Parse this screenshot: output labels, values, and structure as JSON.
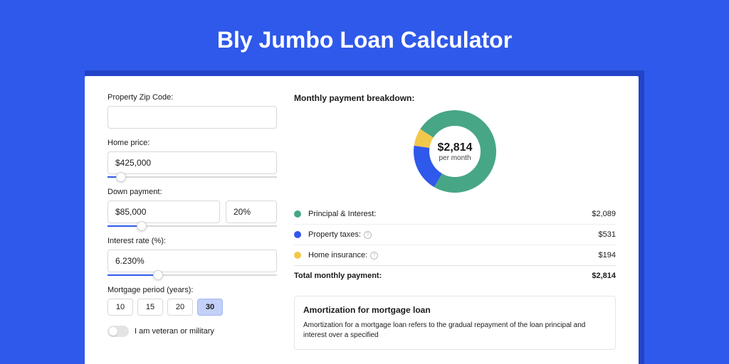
{
  "page": {
    "title": "Bly Jumbo Loan Calculator",
    "background_color": "#2f59ea",
    "card_shadow_color": "#2244c8",
    "card_background": "#ffffff"
  },
  "inputs": {
    "zip": {
      "label": "Property Zip Code:",
      "value": ""
    },
    "home_price": {
      "label": "Home price:",
      "value": "$425,000",
      "slider_pct": 8
    },
    "down_payment": {
      "label": "Down payment:",
      "amount": "$85,000",
      "percent": "20%",
      "slider_pct": 20
    },
    "interest": {
      "label": "Interest rate (%):",
      "value": "6.230%",
      "slider_pct": 30
    },
    "period": {
      "label": "Mortgage period (years):",
      "options": [
        "10",
        "15",
        "20",
        "30"
      ],
      "selected": "30"
    },
    "veteran": {
      "label": "I am veteran or military",
      "on": false
    }
  },
  "breakdown": {
    "title": "Monthly payment breakdown:",
    "center_value": "$2,814",
    "center_sub": "per month",
    "donut": {
      "size": 120,
      "thickness": 22,
      "slices": [
        {
          "key": "principal_interest",
          "color": "#47a685",
          "pct": 74.2
        },
        {
          "key": "property_taxes",
          "color": "#2f59ea",
          "pct": 18.9
        },
        {
          "key": "home_insurance",
          "color": "#f2c84b",
          "pct": 6.9
        }
      ]
    },
    "rows": [
      {
        "dot": "#47a685",
        "label": "Principal & Interest:",
        "info": false,
        "amount": "$2,089"
      },
      {
        "dot": "#2f59ea",
        "label": "Property taxes:",
        "info": true,
        "amount": "$531"
      },
      {
        "dot": "#f2c84b",
        "label": "Home insurance:",
        "info": true,
        "amount": "$194"
      }
    ],
    "total": {
      "label": "Total monthly payment:",
      "amount": "$2,814"
    }
  },
  "amortization": {
    "title": "Amortization for mortgage loan",
    "text": "Amortization for a mortgage loan refers to the gradual repayment of the loan principal and interest over a specified"
  }
}
